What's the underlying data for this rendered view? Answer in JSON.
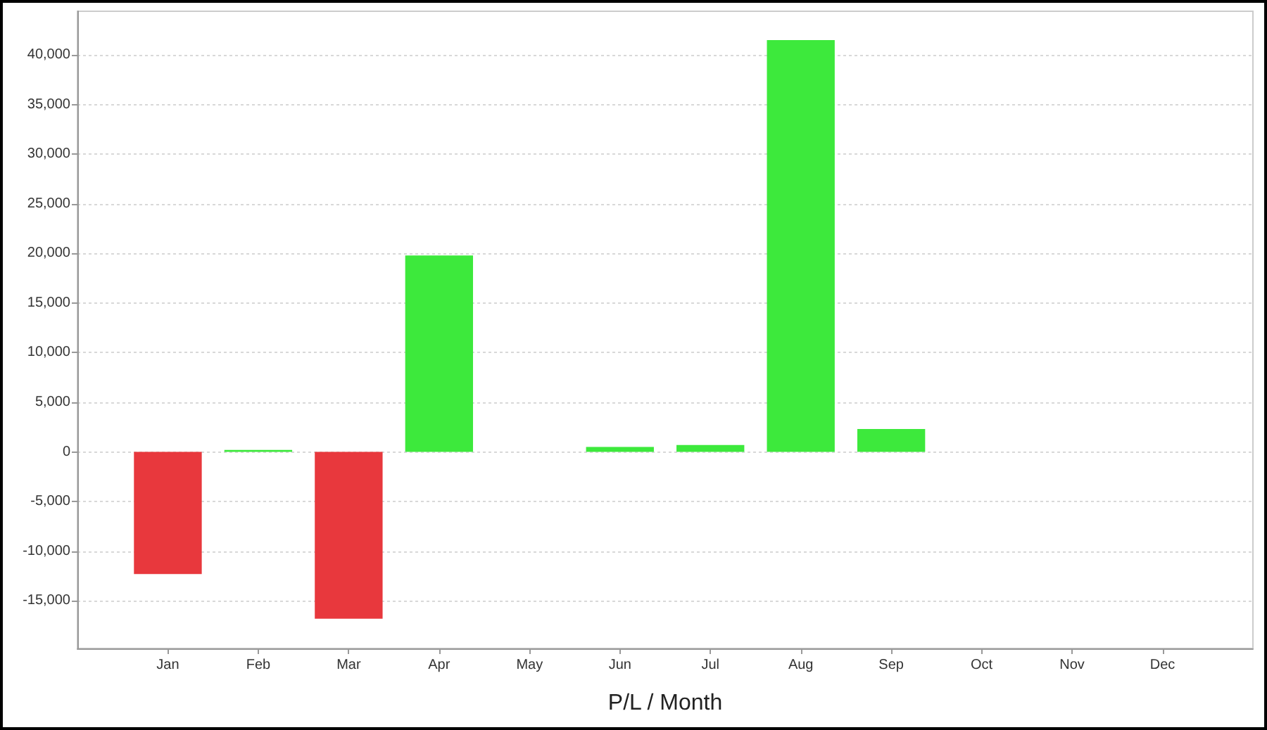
{
  "chart_data": {
    "type": "bar",
    "xlabel": "P/L / Month",
    "categories": [
      "Jan",
      "Feb",
      "Mar",
      "Apr",
      "May",
      "Jun",
      "Jul",
      "Aug",
      "Sep",
      "Oct",
      "Nov",
      "Dec"
    ],
    "values": [
      -12300,
      200,
      -16800,
      19800,
      null,
      500,
      700,
      41500,
      2300,
      null,
      null,
      null
    ],
    "colors": [
      "#e8383d",
      "#3de93c",
      "#e8383d",
      "#3de93c",
      "#3de93c",
      "#3de93c",
      "#3de93c",
      "#3de93c",
      "#3de93c",
      "#3de93c",
      "#3de93c",
      "#3de93c"
    ],
    "ylim": [
      -19800,
      44400
    ],
    "yticks": [
      {
        "value": -15000,
        "label": "-15,000"
      },
      {
        "value": -10000,
        "label": "-10,000"
      },
      {
        "value": -5000,
        "label": "-5,000"
      },
      0,
      {
        "value": 5000,
        "label": "5,000"
      },
      {
        "value": 10000,
        "label": "10,000"
      },
      {
        "value": 15000,
        "label": "15,000"
      },
      {
        "value": 20000,
        "label": "20,000"
      },
      {
        "value": 25000,
        "label": "25,000"
      },
      {
        "value": 30000,
        "label": "30,000"
      },
      {
        "value": 35000,
        "label": "35,000"
      },
      {
        "value": 40000,
        "label": "40,000"
      }
    ],
    "grid": "y"
  }
}
